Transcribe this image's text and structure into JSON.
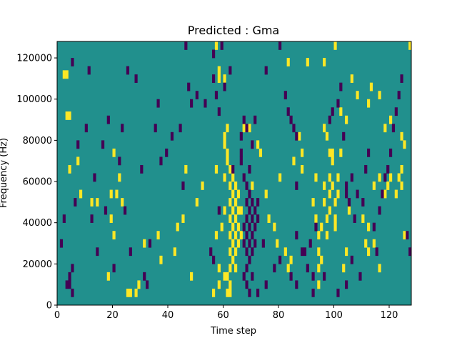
{
  "chart_data": {
    "type": "heatmap",
    "title": "Predicted : Gma",
    "xlabel": "Time step",
    "ylabel": "Frequency (Hz)",
    "xlim": [
      0,
      128
    ],
    "ylim": [
      0,
      128000
    ],
    "xticks": [
      0,
      20,
      40,
      60,
      80,
      100,
      120
    ],
    "yticks": [
      0,
      20000,
      40000,
      60000,
      80000,
      100000,
      120000
    ],
    "ytick_labels": [
      "0",
      "20000",
      "40000",
      "60000",
      "80000",
      "100000",
      "120000"
    ],
    "bin_width_time": 1,
    "bin_height_hz": 4000,
    "colors": {
      "background": "#21908d",
      "low": "#440154",
      "high": "#fde725"
    },
    "cells": {
      "high": [
        [
          3,
          110000
        ],
        [
          2,
          110000
        ],
        [
          3,
          90000
        ],
        [
          4,
          90000
        ],
        [
          7,
          68000
        ],
        [
          4,
          64000
        ],
        [
          8,
          52000
        ],
        [
          14,
          48000
        ],
        [
          12,
          48000
        ],
        [
          19,
          52000
        ],
        [
          21,
          52000
        ],
        [
          23,
          48000
        ],
        [
          20,
          72000
        ],
        [
          22,
          60000
        ],
        [
          19,
          40000
        ],
        [
          20,
          32000
        ],
        [
          18,
          12000
        ],
        [
          25,
          4000
        ],
        [
          26,
          4000
        ],
        [
          28,
          4000
        ],
        [
          29,
          8000
        ],
        [
          31,
          28000
        ],
        [
          36,
          32000
        ],
        [
          37,
          20000
        ],
        [
          42,
          24000
        ],
        [
          43,
          36000
        ],
        [
          45,
          40000
        ],
        [
          46,
          64000
        ],
        [
          48,
          12000
        ],
        [
          50,
          48000
        ],
        [
          52,
          56000
        ],
        [
          57,
          32000
        ],
        [
          57,
          64000
        ],
        [
          58,
          16000
        ],
        [
          59,
          36000
        ],
        [
          60,
          44000
        ],
        [
          60,
          60000
        ],
        [
          60,
          80000
        ],
        [
          61,
          84000
        ],
        [
          61,
          72000
        ],
        [
          62,
          64000
        ],
        [
          62,
          56000
        ],
        [
          62,
          48000
        ],
        [
          62,
          40000
        ],
        [
          62,
          32000
        ],
        [
          62,
          24000
        ],
        [
          62,
          16000
        ],
        [
          62,
          8000
        ],
        [
          63,
          60000
        ],
        [
          63,
          52000
        ],
        [
          63,
          44000
        ],
        [
          63,
          36000
        ],
        [
          63,
          28000
        ],
        [
          63,
          20000
        ],
        [
          64,
          56000
        ],
        [
          64,
          48000
        ],
        [
          64,
          40000
        ],
        [
          64,
          32000
        ],
        [
          64,
          24000
        ],
        [
          64,
          16000
        ],
        [
          65,
          52000
        ],
        [
          65,
          44000
        ],
        [
          65,
          36000
        ],
        [
          65,
          28000
        ],
        [
          66,
          44000
        ],
        [
          66,
          32000
        ],
        [
          61,
          12000
        ],
        [
          61,
          4000
        ],
        [
          56,
          4000
        ],
        [
          58,
          8000
        ],
        [
          60,
          12000
        ],
        [
          62,
          4000
        ],
        [
          57,
          124000
        ],
        [
          58,
          112000
        ],
        [
          58,
          108000
        ],
        [
          60,
          108000
        ],
        [
          60,
          76000
        ],
        [
          61,
          68000
        ],
        [
          78,
          36000
        ],
        [
          79,
          28000
        ],
        [
          82,
          24000
        ],
        [
          83,
          16000
        ],
        [
          84,
          20000
        ],
        [
          92,
          48000
        ],
        [
          93,
          40000
        ],
        [
          94,
          32000
        ],
        [
          94,
          24000
        ],
        [
          94,
          16000
        ],
        [
          94,
          8000
        ],
        [
          95,
          20000
        ],
        [
          95,
          36000
        ],
        [
          96,
          56000
        ],
        [
          96,
          48000
        ],
        [
          97,
          40000
        ],
        [
          97,
          32000
        ],
        [
          98,
          60000
        ],
        [
          98,
          52000
        ],
        [
          98,
          44000
        ],
        [
          99,
          68000
        ],
        [
          99,
          56000
        ],
        [
          100,
          48000
        ],
        [
          100,
          40000
        ],
        [
          100,
          36000
        ],
        [
          101,
          60000
        ],
        [
          101,
          52000
        ],
        [
          102,
          92000
        ],
        [
          102,
          72000
        ],
        [
          103,
          16000
        ],
        [
          104,
          24000
        ],
        [
          105,
          44000
        ],
        [
          110,
          40000
        ],
        [
          112,
          96000
        ],
        [
          114,
          56000
        ],
        [
          116,
          60000
        ],
        [
          118,
          52000
        ],
        [
          119,
          56000
        ],
        [
          120,
          60000
        ],
        [
          122,
          52000
        ],
        [
          123,
          60000
        ],
        [
          124,
          56000
        ],
        [
          125,
          32000
        ],
        [
          127,
          124000
        ],
        [
          100,
          124000
        ],
        [
          96,
          116000
        ],
        [
          90,
          116000
        ],
        [
          83,
          116000
        ],
        [
          67,
          84000
        ],
        [
          69,
          84000
        ],
        [
          70,
          56000
        ],
        [
          72,
          76000
        ],
        [
          73,
          72000
        ],
        [
          75,
          52000
        ],
        [
          76,
          40000
        ],
        [
          80,
          60000
        ],
        [
          85,
          68000
        ],
        [
          87,
          80000
        ],
        [
          88,
          72000
        ],
        [
          88,
          64000
        ],
        [
          93,
          60000
        ],
        [
          96,
          84000
        ],
        [
          97,
          80000
        ],
        [
          98,
          72000
        ],
        [
          99,
          72000
        ],
        [
          104,
          88000
        ],
        [
          106,
          108000
        ],
        [
          108,
          100000
        ],
        [
          111,
          28000
        ],
        [
          112,
          24000
        ],
        [
          113,
          104000
        ],
        [
          116,
          100000
        ],
        [
          124,
          64000
        ],
        [
          124,
          80000
        ],
        [
          125,
          76000
        ],
        [
          120,
          88000
        ],
        [
          118,
          84000
        ],
        [
          116,
          16000
        ],
        [
          112,
          36000
        ],
        [
          114,
          28000
        ]
      ],
      "low": [
        [
          5,
          116000
        ],
        [
          4,
          12000
        ],
        [
          4,
          8000
        ],
        [
          5,
          4000
        ],
        [
          5,
          16000
        ],
        [
          3,
          8000
        ],
        [
          11,
          112000
        ],
        [
          14,
          24000
        ],
        [
          17,
          44000
        ],
        [
          18,
          88000
        ],
        [
          20,
          16000
        ],
        [
          23,
          84000
        ],
        [
          25,
          112000
        ],
        [
          28,
          108000
        ],
        [
          30,
          64000
        ],
        [
          31,
          12000
        ],
        [
          33,
          28000
        ],
        [
          35,
          84000
        ],
        [
          37,
          68000
        ],
        [
          39,
          72000
        ],
        [
          41,
          80000
        ],
        [
          45,
          56000
        ],
        [
          47,
          104000
        ],
        [
          48,
          96000
        ],
        [
          50,
          100000
        ],
        [
          53,
          96000
        ],
        [
          56,
          108000
        ],
        [
          57,
          100000
        ],
        [
          58,
          92000
        ],
        [
          59,
          124000
        ],
        [
          55,
          24000
        ],
        [
          56,
          20000
        ],
        [
          58,
          44000
        ],
        [
          60,
          104000
        ],
        [
          66,
          68000
        ],
        [
          66,
          72000
        ],
        [
          67,
          60000
        ],
        [
          68,
          56000
        ],
        [
          68,
          48000
        ],
        [
          68,
          40000
        ],
        [
          68,
          32000
        ],
        [
          68,
          24000
        ],
        [
          68,
          16000
        ],
        [
          69,
          64000
        ],
        [
          69,
          52000
        ],
        [
          69,
          44000
        ],
        [
          69,
          36000
        ],
        [
          69,
          28000
        ],
        [
          69,
          20000
        ],
        [
          70,
          48000
        ],
        [
          70,
          40000
        ],
        [
          70,
          32000
        ],
        [
          70,
          24000
        ],
        [
          71,
          44000
        ],
        [
          71,
          36000
        ],
        [
          71,
          28000
        ],
        [
          72,
          48000
        ],
        [
          72,
          40000
        ],
        [
          67,
          36000
        ],
        [
          67,
          28000
        ],
        [
          67,
          12000
        ],
        [
          68,
          8000
        ],
        [
          69,
          4000
        ],
        [
          66,
          80000
        ],
        [
          67,
          88000
        ],
        [
          68,
          84000
        ],
        [
          70,
          12000
        ],
        [
          70,
          76000
        ],
        [
          71,
          88000
        ],
        [
          75,
          112000
        ],
        [
          80,
          124000
        ],
        [
          82,
          100000
        ],
        [
          83,
          92000
        ],
        [
          84,
          88000
        ],
        [
          85,
          84000
        ],
        [
          86,
          80000
        ],
        [
          86,
          56000
        ],
        [
          86,
          32000
        ],
        [
          89,
          24000
        ],
        [
          90,
          16000
        ],
        [
          91,
          28000
        ],
        [
          92,
          12000
        ],
        [
          93,
          36000
        ],
        [
          98,
          88000
        ],
        [
          99,
          92000
        ],
        [
          101,
          96000
        ],
        [
          102,
          104000
        ],
        [
          103,
          80000
        ],
        [
          104,
          56000
        ],
        [
          104,
          52000
        ],
        [
          105,
          48000
        ],
        [
          106,
          60000
        ],
        [
          107,
          40000
        ],
        [
          108,
          52000
        ],
        [
          110,
          48000
        ],
        [
          111,
          64000
        ],
        [
          112,
          72000
        ],
        [
          114,
          36000
        ],
        [
          115,
          24000
        ],
        [
          116,
          44000
        ],
        [
          117,
          52000
        ],
        [
          118,
          60000
        ],
        [
          119,
          64000
        ],
        [
          120,
          72000
        ],
        [
          121,
          84000
        ],
        [
          122,
          92000
        ],
        [
          123,
          100000
        ],
        [
          124,
          108000
        ],
        [
          126,
          32000
        ],
        [
          127,
          24000
        ],
        [
          109,
          12000
        ],
        [
          106,
          20000
        ],
        [
          104,
          8000
        ],
        [
          101,
          4000
        ],
        [
          96,
          12000
        ],
        [
          92,
          4000
        ],
        [
          88,
          24000
        ],
        [
          86,
          8000
        ],
        [
          84,
          12000
        ],
        [
          80,
          20000
        ],
        [
          78,
          16000
        ],
        [
          75,
          8000
        ],
        [
          74,
          28000
        ],
        [
          72,
          4000
        ],
        [
          63,
          64000
        ],
        [
          62,
          112000
        ],
        [
          56,
          120000
        ],
        [
          46,
          124000
        ],
        [
          44,
          84000
        ],
        [
          36,
          96000
        ],
        [
          32,
          8000
        ],
        [
          26,
          24000
        ],
        [
          24,
          44000
        ],
        [
          22,
          68000
        ],
        [
          16,
          76000
        ],
        [
          13,
          60000
        ],
        [
          12,
          40000
        ],
        [
          10,
          84000
        ],
        [
          7,
          76000
        ],
        [
          6,
          48000
        ],
        [
          2,
          40000
        ],
        [
          1,
          28000
        ]
      ]
    }
  }
}
